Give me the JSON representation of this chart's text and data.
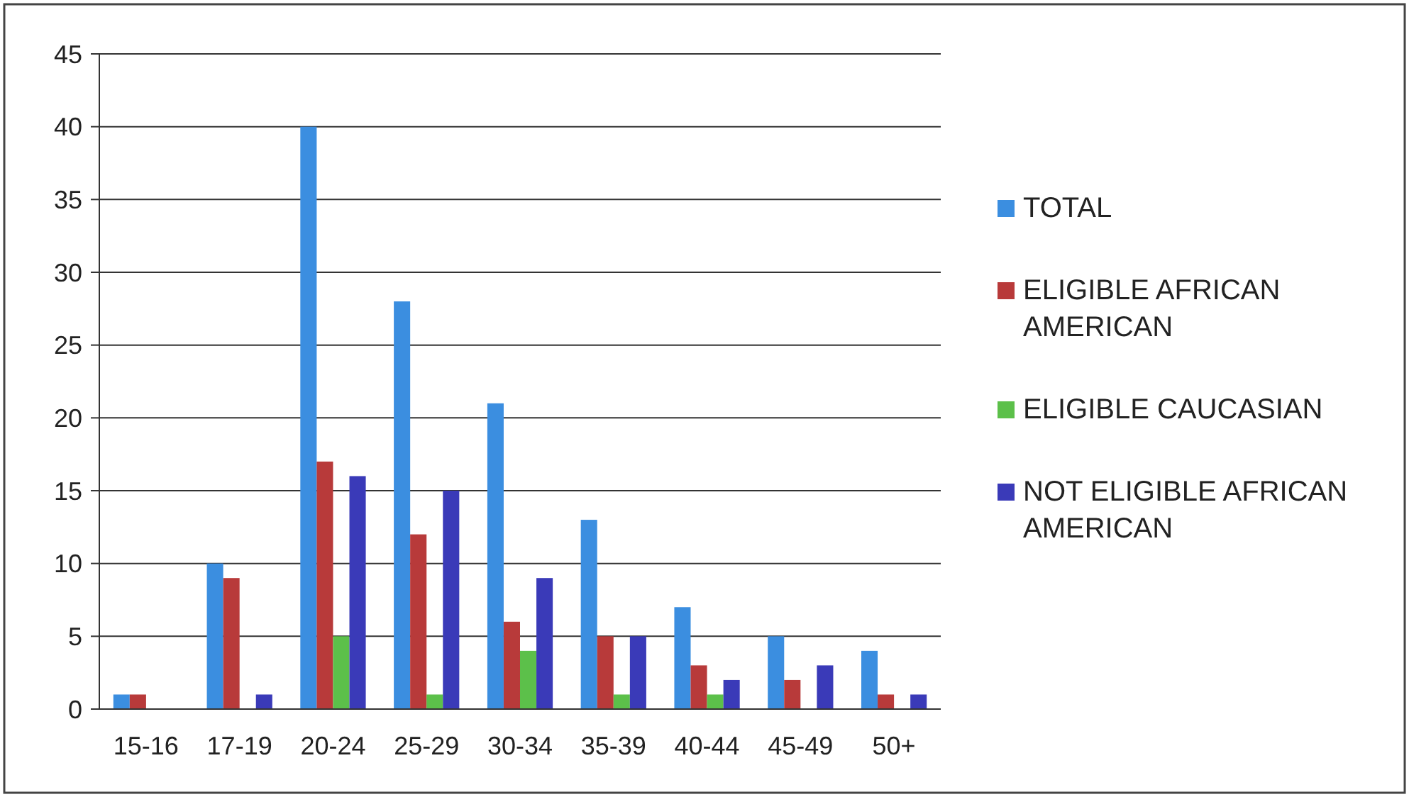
{
  "chart_data": {
    "type": "bar",
    "categories": [
      "15-16",
      "17-19",
      "20-24",
      "25-29",
      "30-34",
      "35-39",
      "40-44",
      "45-49",
      "50+"
    ],
    "series": [
      {
        "name": "TOTAL",
        "color": "#3b8ee0",
        "values": [
          1,
          10,
          40,
          28,
          21,
          13,
          7,
          5,
          4
        ]
      },
      {
        "name": "ELIGIBLE AFRICAN AMERICAN",
        "color": "#b83a3a",
        "values": [
          1,
          9,
          17,
          12,
          6,
          5,
          3,
          2,
          1
        ]
      },
      {
        "name": "ELIGIBLE CAUCASIAN",
        "color": "#5cc04a",
        "values": [
          0,
          0,
          5,
          1,
          4,
          1,
          1,
          0,
          0
        ]
      },
      {
        "name": "NOT ELIGIBLE AFRICAN AMERICAN",
        "color": "#3a3ab8",
        "values": [
          0,
          1,
          16,
          15,
          9,
          5,
          2,
          3,
          1
        ]
      }
    ],
    "ylim": [
      0,
      45
    ],
    "yticks": [
      0,
      5,
      10,
      15,
      20,
      25,
      30,
      35,
      40,
      45
    ],
    "grid": "y",
    "legend": "right"
  }
}
